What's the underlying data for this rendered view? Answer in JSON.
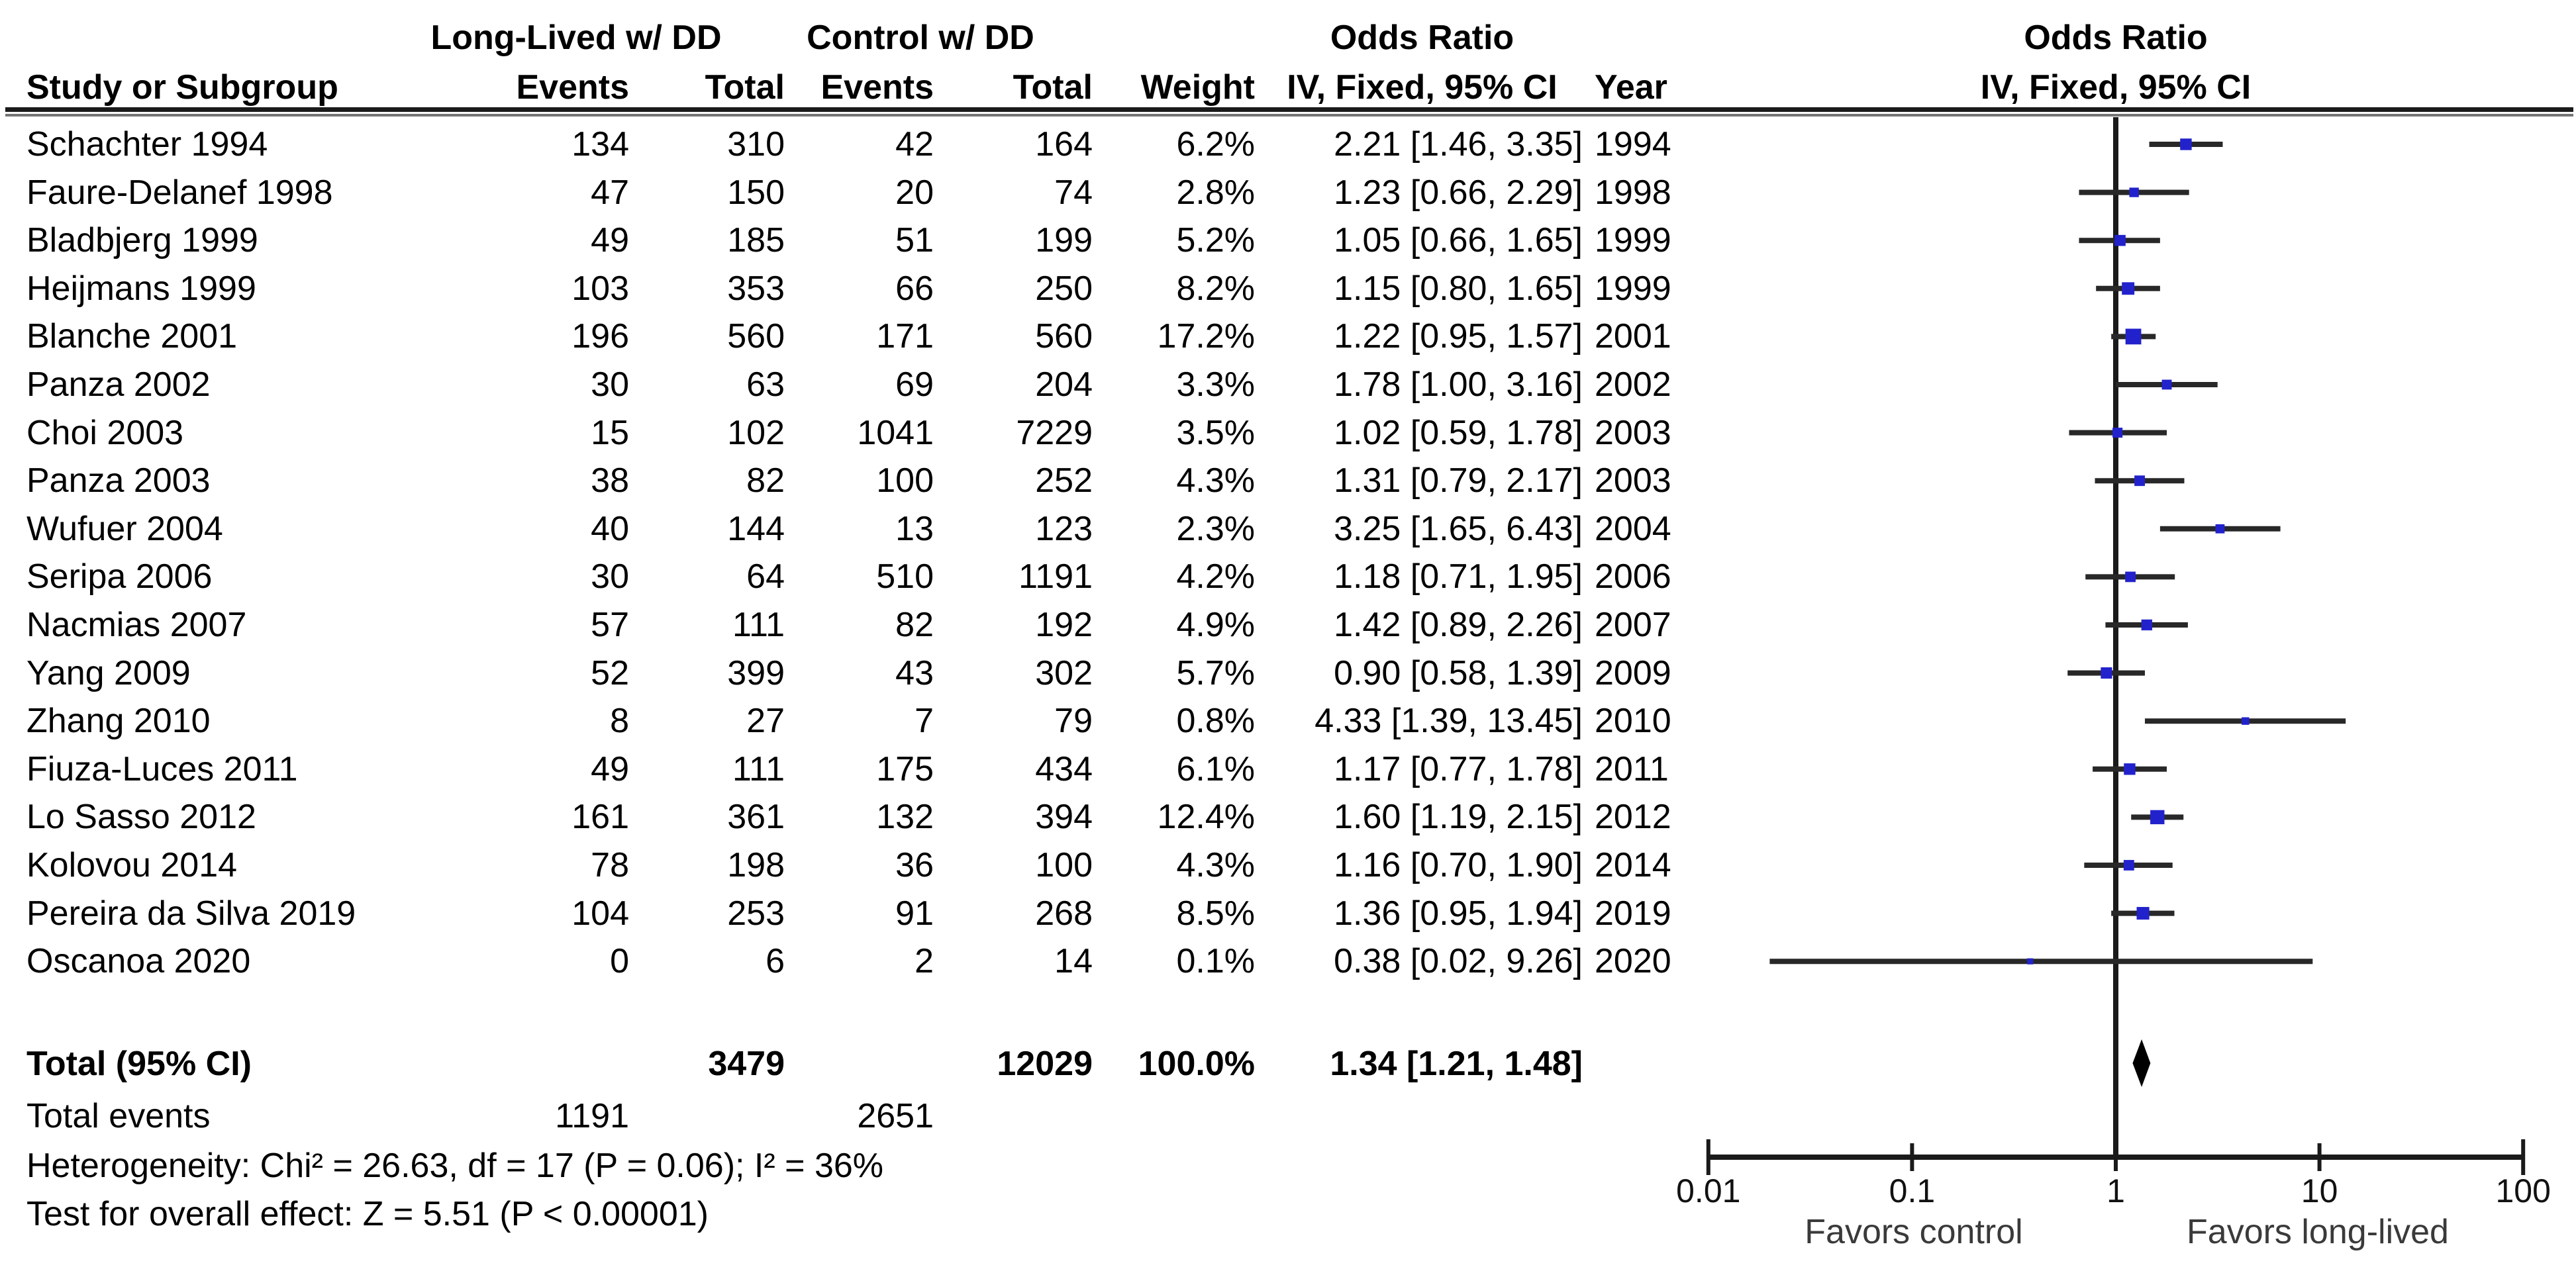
{
  "header": {
    "group_left": "Long-Lived w/ DD",
    "group_right": "Control w/ DD",
    "col_study": "Study or Subgroup",
    "col_events_left": "Events",
    "col_total_left": "Total",
    "col_events_right": "Events",
    "col_total_right": "Total",
    "col_weight": "Weight",
    "or_col_line1": "Odds Ratio",
    "or_col_line2": "IV, Fixed, 95% CI",
    "col_year": "Year",
    "plot_col_line1": "Odds Ratio",
    "plot_col_line2": "IV, Fixed, 95% CI"
  },
  "chart_data": {
    "type": "forest",
    "effect_measure": "Odds Ratio",
    "model": "IV, Fixed, 95% CI",
    "x_scale": "log10",
    "x_range": [
      0.01,
      100
    ],
    "axis": {
      "ticks": [
        {
          "value": 0.01,
          "label": "0.01"
        },
        {
          "value": 0.1,
          "label": "0.1"
        },
        {
          "value": 1,
          "label": "1"
        },
        {
          "value": 10,
          "label": "10"
        },
        {
          "value": 100,
          "label": "100"
        }
      ],
      "favors_left": "Favors control",
      "favors_right": "Favors long-lived"
    },
    "studies": [
      {
        "name": "Schachter 1994",
        "events1": "134",
        "total1": "310",
        "events2": "42",
        "total2": "164",
        "weight": "6.2%",
        "weight_value": 6.2,
        "or": 2.21,
        "ci_low": 1.46,
        "ci_high": 3.35,
        "or_text": "2.21 [1.46, 3.35]",
        "year": "1994"
      },
      {
        "name": "Faure-Delanef 1998",
        "events1": "47",
        "total1": "150",
        "events2": "20",
        "total2": "74",
        "weight": "2.8%",
        "weight_value": 2.8,
        "or": 1.23,
        "ci_low": 0.66,
        "ci_high": 2.29,
        "or_text": "1.23 [0.66, 2.29]",
        "year": "1998"
      },
      {
        "name": "Bladbjerg 1999",
        "events1": "49",
        "total1": "185",
        "events2": "51",
        "total2": "199",
        "weight": "5.2%",
        "weight_value": 5.2,
        "or": 1.05,
        "ci_low": 0.66,
        "ci_high": 1.65,
        "or_text": "1.05 [0.66, 1.65]",
        "year": "1999"
      },
      {
        "name": "Heijmans 1999",
        "events1": "103",
        "total1": "353",
        "events2": "66",
        "total2": "250",
        "weight": "8.2%",
        "weight_value": 8.2,
        "or": 1.15,
        "ci_low": 0.8,
        "ci_high": 1.65,
        "or_text": "1.15 [0.80, 1.65]",
        "year": "1999"
      },
      {
        "name": "Blanche 2001",
        "events1": "196",
        "total1": "560",
        "events2": "171",
        "total2": "560",
        "weight": "17.2%",
        "weight_value": 17.2,
        "or": 1.22,
        "ci_low": 0.95,
        "ci_high": 1.57,
        "or_text": "1.22 [0.95, 1.57]",
        "year": "2001"
      },
      {
        "name": "Panza 2002",
        "events1": "30",
        "total1": "63",
        "events2": "69",
        "total2": "204",
        "weight": "3.3%",
        "weight_value": 3.3,
        "or": 1.78,
        "ci_low": 1.0,
        "ci_high": 3.16,
        "or_text": "1.78 [1.00, 3.16]",
        "year": "2002"
      },
      {
        "name": "Choi 2003",
        "events1": "15",
        "total1": "102",
        "events2": "1041",
        "total2": "7229",
        "weight": "3.5%",
        "weight_value": 3.5,
        "or": 1.02,
        "ci_low": 0.59,
        "ci_high": 1.78,
        "or_text": "1.02 [0.59, 1.78]",
        "year": "2003"
      },
      {
        "name": "Panza 2003",
        "events1": "38",
        "total1": "82",
        "events2": "100",
        "total2": "252",
        "weight": "4.3%",
        "weight_value": 4.3,
        "or": 1.31,
        "ci_low": 0.79,
        "ci_high": 2.17,
        "or_text": "1.31 [0.79, 2.17]",
        "year": "2003"
      },
      {
        "name": "Wufuer 2004",
        "events1": "40",
        "total1": "144",
        "events2": "13",
        "total2": "123",
        "weight": "2.3%",
        "weight_value": 2.3,
        "or": 3.25,
        "ci_low": 1.65,
        "ci_high": 6.43,
        "or_text": "3.25 [1.65, 6.43]",
        "year": "2004"
      },
      {
        "name": "Seripa 2006",
        "events1": "30",
        "total1": "64",
        "events2": "510",
        "total2": "1191",
        "weight": "4.2%",
        "weight_value": 4.2,
        "or": 1.18,
        "ci_low": 0.71,
        "ci_high": 1.95,
        "or_text": "1.18 [0.71, 1.95]",
        "year": "2006"
      },
      {
        "name": "Nacmias 2007",
        "events1": "57",
        "total1": "111",
        "events2": "82",
        "total2": "192",
        "weight": "4.9%",
        "weight_value": 4.9,
        "or": 1.42,
        "ci_low": 0.89,
        "ci_high": 2.26,
        "or_text": "1.42 [0.89, 2.26]",
        "year": "2007"
      },
      {
        "name": "Yang 2009",
        "events1": "52",
        "total1": "399",
        "events2": "43",
        "total2": "302",
        "weight": "5.7%",
        "weight_value": 5.7,
        "or": 0.9,
        "ci_low": 0.58,
        "ci_high": 1.39,
        "or_text": "0.90 [0.58, 1.39]",
        "year": "2009"
      },
      {
        "name": "Zhang 2010",
        "events1": "8",
        "total1": "27",
        "events2": "7",
        "total2": "79",
        "weight": "0.8%",
        "weight_value": 0.8,
        "or": 4.33,
        "ci_low": 1.39,
        "ci_high": 13.45,
        "or_text": "4.33 [1.39, 13.45]",
        "year": "2010"
      },
      {
        "name": "Fiuza-Luces 2011",
        "events1": "49",
        "total1": "111",
        "events2": "175",
        "total2": "434",
        "weight": "6.1%",
        "weight_value": 6.1,
        "or": 1.17,
        "ci_low": 0.77,
        "ci_high": 1.78,
        "or_text": "1.17 [0.77, 1.78]",
        "year": "2011"
      },
      {
        "name": "Lo Sasso 2012",
        "events1": "161",
        "total1": "361",
        "events2": "132",
        "total2": "394",
        "weight": "12.4%",
        "weight_value": 12.4,
        "or": 1.6,
        "ci_low": 1.19,
        "ci_high": 2.15,
        "or_text": "1.60 [1.19, 2.15]",
        "year": "2012"
      },
      {
        "name": "Kolovou 2014",
        "events1": "78",
        "total1": "198",
        "events2": "36",
        "total2": "100",
        "weight": "4.3%",
        "weight_value": 4.3,
        "or": 1.16,
        "ci_low": 0.7,
        "ci_high": 1.9,
        "or_text": "1.16 [0.70, 1.90]",
        "year": "2014"
      },
      {
        "name": "Pereira da Silva 2019",
        "events1": "104",
        "total1": "253",
        "events2": "91",
        "total2": "268",
        "weight": "8.5%",
        "weight_value": 8.5,
        "or": 1.36,
        "ci_low": 0.95,
        "ci_high": 1.94,
        "or_text": "1.36 [0.95, 1.94]",
        "year": "2019"
      },
      {
        "name": "Oscanoa 2020",
        "events1": "0",
        "total1": "6",
        "events2": "2",
        "total2": "14",
        "weight": "0.1%",
        "weight_value": 0.1,
        "or": 0.38,
        "ci_low": 0.02,
        "ci_high": 9.26,
        "or_text": "0.38 [0.02, 9.26]",
        "year": "2020"
      }
    ],
    "total": {
      "label": "Total (95% CI)",
      "total1": "3479",
      "total2": "12029",
      "weight": "100.0%",
      "or": 1.34,
      "ci_low": 1.21,
      "ci_high": 1.48,
      "or_text": "1.34 [1.21, 1.48]"
    },
    "total_events": {
      "label": "Total events",
      "events1": "1191",
      "events2": "2651"
    },
    "heterogeneity": "Heterogeneity: Chi² = 26.63, df = 17 (P = 0.06); I² = 36%",
    "overall_effect": "Test for overall effect: Z = 5.51 (P < 0.00001)"
  },
  "colors": {
    "marker_blue": "#2222cc",
    "ci_line": "#282828",
    "diamond": "#000000",
    "axis": "#1a1a1a",
    "favors_text": "#3a3a3a"
  }
}
